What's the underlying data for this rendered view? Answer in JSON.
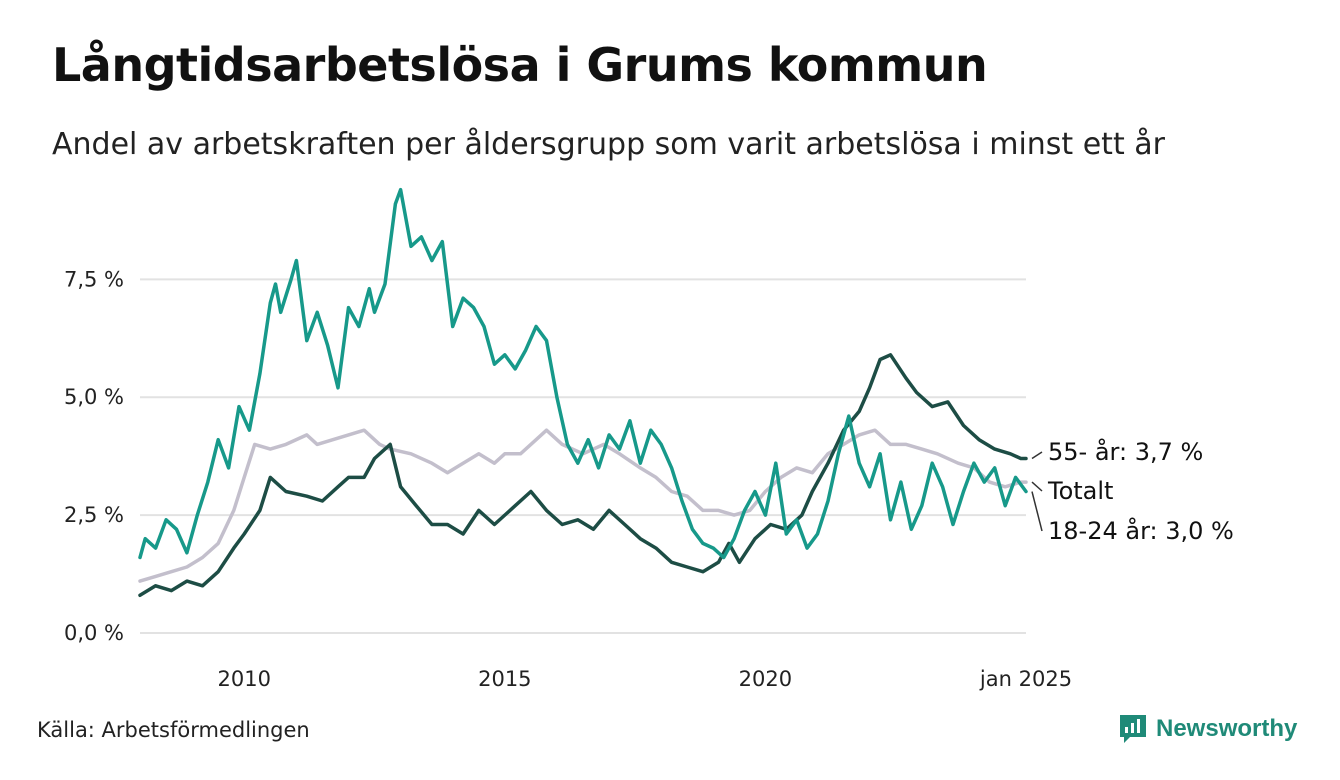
{
  "header": {
    "title": "Långtidsarbetslösa i Grums kommun",
    "subtitle": "Andel av arbetskraften per åldersgrupp som varit arbetslösa i minst ett år"
  },
  "footer": {
    "source": "Källa: Arbetsförmedlingen",
    "brand": "Newsworthy"
  },
  "colors": {
    "youth": "#17998a",
    "senior": "#1d4d45",
    "total": "#c3bfcc",
    "grid": "#e2e2e2",
    "brand": "#1f8a78"
  },
  "chart_data": {
    "type": "line",
    "title": "Långtidsarbetslösa i Grums kommun",
    "xlabel": "",
    "ylabel": "",
    "x_range": [
      2008.0,
      2025.0
    ],
    "ylim": [
      0,
      9.5
    ],
    "y_ticks": [
      0,
      2.5,
      5.0,
      7.5
    ],
    "y_tick_labels": [
      "0,0 %",
      "2,5 %",
      "5,0 %",
      "7,5 %"
    ],
    "x_ticks": [
      2010,
      2015,
      2020,
      2025
    ],
    "x_tick_labels": [
      "2010",
      "2015",
      "2020",
      "jan 2025"
    ],
    "grid": true,
    "series": [
      {
        "key": "total",
        "name": "Totalt",
        "end_label": "Totalt",
        "points": [
          [
            2008.0,
            1.1
          ],
          [
            2008.3,
            1.2
          ],
          [
            2008.6,
            1.3
          ],
          [
            2008.9,
            1.4
          ],
          [
            2009.2,
            1.6
          ],
          [
            2009.5,
            1.9
          ],
          [
            2009.8,
            2.6
          ],
          [
            2010.0,
            3.3
          ],
          [
            2010.2,
            4.0
          ],
          [
            2010.5,
            3.9
          ],
          [
            2010.8,
            4.0
          ],
          [
            2011.2,
            4.2
          ],
          [
            2011.4,
            4.0
          ],
          [
            2011.7,
            4.1
          ],
          [
            2012.0,
            4.2
          ],
          [
            2012.3,
            4.3
          ],
          [
            2012.6,
            4.0
          ],
          [
            2012.8,
            3.9
          ],
          [
            2013.2,
            3.8
          ],
          [
            2013.6,
            3.6
          ],
          [
            2013.9,
            3.4
          ],
          [
            2014.2,
            3.6
          ],
          [
            2014.5,
            3.8
          ],
          [
            2014.8,
            3.6
          ],
          [
            2015.0,
            3.8
          ],
          [
            2015.3,
            3.8
          ],
          [
            2015.6,
            4.1
          ],
          [
            2015.8,
            4.3
          ],
          [
            2016.1,
            4.0
          ],
          [
            2016.5,
            3.8
          ],
          [
            2016.9,
            4.0
          ],
          [
            2017.2,
            3.8
          ],
          [
            2017.6,
            3.5
          ],
          [
            2017.9,
            3.3
          ],
          [
            2018.2,
            3.0
          ],
          [
            2018.5,
            2.9
          ],
          [
            2018.8,
            2.6
          ],
          [
            2019.1,
            2.6
          ],
          [
            2019.4,
            2.5
          ],
          [
            2019.7,
            2.6
          ],
          [
            2020.0,
            3.0
          ],
          [
            2020.3,
            3.3
          ],
          [
            2020.6,
            3.5
          ],
          [
            2020.9,
            3.4
          ],
          [
            2021.2,
            3.8
          ],
          [
            2021.5,
            4.0
          ],
          [
            2021.8,
            4.2
          ],
          [
            2022.1,
            4.3
          ],
          [
            2022.4,
            4.0
          ],
          [
            2022.7,
            4.0
          ],
          [
            2023.0,
            3.9
          ],
          [
            2023.3,
            3.8
          ],
          [
            2023.7,
            3.6
          ],
          [
            2024.0,
            3.5
          ],
          [
            2024.3,
            3.2
          ],
          [
            2024.6,
            3.1
          ],
          [
            2024.9,
            3.2
          ],
          [
            2025.0,
            3.2
          ]
        ]
      },
      {
        "key": "senior",
        "name": "55- år",
        "end_label": "55- år: 3,7 %",
        "points": [
          [
            2008.0,
            0.8
          ],
          [
            2008.3,
            1.0
          ],
          [
            2008.6,
            0.9
          ],
          [
            2008.9,
            1.1
          ],
          [
            2009.2,
            1.0
          ],
          [
            2009.5,
            1.3
          ],
          [
            2009.8,
            1.8
          ],
          [
            2010.0,
            2.1
          ],
          [
            2010.3,
            2.6
          ],
          [
            2010.5,
            3.3
          ],
          [
            2010.8,
            3.0
          ],
          [
            2011.2,
            2.9
          ],
          [
            2011.5,
            2.8
          ],
          [
            2011.8,
            3.1
          ],
          [
            2012.0,
            3.3
          ],
          [
            2012.3,
            3.3
          ],
          [
            2012.5,
            3.7
          ],
          [
            2012.8,
            4.0
          ],
          [
            2013.0,
            3.1
          ],
          [
            2013.3,
            2.7
          ],
          [
            2013.6,
            2.3
          ],
          [
            2013.9,
            2.3
          ],
          [
            2014.2,
            2.1
          ],
          [
            2014.5,
            2.6
          ],
          [
            2014.8,
            2.3
          ],
          [
            2015.2,
            2.7
          ],
          [
            2015.5,
            3.0
          ],
          [
            2015.8,
            2.6
          ],
          [
            2016.1,
            2.3
          ],
          [
            2016.4,
            2.4
          ],
          [
            2016.7,
            2.2
          ],
          [
            2017.0,
            2.6
          ],
          [
            2017.3,
            2.3
          ],
          [
            2017.6,
            2.0
          ],
          [
            2017.9,
            1.8
          ],
          [
            2018.2,
            1.5
          ],
          [
            2018.5,
            1.4
          ],
          [
            2018.8,
            1.3
          ],
          [
            2019.1,
            1.5
          ],
          [
            2019.3,
            1.9
          ],
          [
            2019.5,
            1.5
          ],
          [
            2019.8,
            2.0
          ],
          [
            2020.1,
            2.3
          ],
          [
            2020.4,
            2.2
          ],
          [
            2020.7,
            2.5
          ],
          [
            2020.9,
            3.0
          ],
          [
            2021.2,
            3.6
          ],
          [
            2021.5,
            4.3
          ],
          [
            2021.8,
            4.7
          ],
          [
            2022.0,
            5.2
          ],
          [
            2022.2,
            5.8
          ],
          [
            2022.4,
            5.9
          ],
          [
            2022.7,
            5.4
          ],
          [
            2022.9,
            5.1
          ],
          [
            2023.2,
            4.8
          ],
          [
            2023.5,
            4.9
          ],
          [
            2023.8,
            4.4
          ],
          [
            2024.1,
            4.1
          ],
          [
            2024.4,
            3.9
          ],
          [
            2024.7,
            3.8
          ],
          [
            2024.9,
            3.7
          ],
          [
            2025.0,
            3.7
          ]
        ]
      },
      {
        "key": "youth",
        "name": "18-24 år",
        "end_label": "18-24 år: 3,0 %",
        "points": [
          [
            2008.0,
            1.6
          ],
          [
            2008.1,
            2.0
          ],
          [
            2008.3,
            1.8
          ],
          [
            2008.5,
            2.4
          ],
          [
            2008.7,
            2.2
          ],
          [
            2008.9,
            1.7
          ],
          [
            2009.1,
            2.5
          ],
          [
            2009.3,
            3.2
          ],
          [
            2009.5,
            4.1
          ],
          [
            2009.7,
            3.5
          ],
          [
            2009.9,
            4.8
          ],
          [
            2010.1,
            4.3
          ],
          [
            2010.3,
            5.5
          ],
          [
            2010.5,
            7.0
          ],
          [
            2010.6,
            7.4
          ],
          [
            2010.7,
            6.8
          ],
          [
            2010.9,
            7.5
          ],
          [
            2011.0,
            7.9
          ],
          [
            2011.2,
            6.2
          ],
          [
            2011.4,
            6.8
          ],
          [
            2011.6,
            6.1
          ],
          [
            2011.8,
            5.2
          ],
          [
            2012.0,
            6.9
          ],
          [
            2012.2,
            6.5
          ],
          [
            2012.4,
            7.3
          ],
          [
            2012.5,
            6.8
          ],
          [
            2012.7,
            7.4
          ],
          [
            2012.9,
            9.1
          ],
          [
            2013.0,
            9.4
          ],
          [
            2013.2,
            8.2
          ],
          [
            2013.4,
            8.4
          ],
          [
            2013.6,
            7.9
          ],
          [
            2013.8,
            8.3
          ],
          [
            2014.0,
            6.5
          ],
          [
            2014.2,
            7.1
          ],
          [
            2014.4,
            6.9
          ],
          [
            2014.6,
            6.5
          ],
          [
            2014.8,
            5.7
          ],
          [
            2015.0,
            5.9
          ],
          [
            2015.2,
            5.6
          ],
          [
            2015.4,
            6.0
          ],
          [
            2015.6,
            6.5
          ],
          [
            2015.8,
            6.2
          ],
          [
            2016.0,
            5.0
          ],
          [
            2016.2,
            4.0
          ],
          [
            2016.4,
            3.6
          ],
          [
            2016.6,
            4.1
          ],
          [
            2016.8,
            3.5
          ],
          [
            2017.0,
            4.2
          ],
          [
            2017.2,
            3.9
          ],
          [
            2017.4,
            4.5
          ],
          [
            2017.6,
            3.6
          ],
          [
            2017.8,
            4.3
          ],
          [
            2018.0,
            4.0
          ],
          [
            2018.2,
            3.5
          ],
          [
            2018.4,
            2.8
          ],
          [
            2018.6,
            2.2
          ],
          [
            2018.8,
            1.9
          ],
          [
            2019.0,
            1.8
          ],
          [
            2019.2,
            1.6
          ],
          [
            2019.4,
            2.0
          ],
          [
            2019.6,
            2.6
          ],
          [
            2019.8,
            3.0
          ],
          [
            2020.0,
            2.5
          ],
          [
            2020.2,
            3.6
          ],
          [
            2020.4,
            2.1
          ],
          [
            2020.6,
            2.4
          ],
          [
            2020.8,
            1.8
          ],
          [
            2021.0,
            2.1
          ],
          [
            2021.2,
            2.8
          ],
          [
            2021.4,
            3.8
          ],
          [
            2021.6,
            4.6
          ],
          [
            2021.8,
            3.6
          ],
          [
            2022.0,
            3.1
          ],
          [
            2022.2,
            3.8
          ],
          [
            2022.4,
            2.4
          ],
          [
            2022.6,
            3.2
          ],
          [
            2022.8,
            2.2
          ],
          [
            2023.0,
            2.7
          ],
          [
            2023.2,
            3.6
          ],
          [
            2023.4,
            3.1
          ],
          [
            2023.6,
            2.3
          ],
          [
            2023.8,
            3.0
          ],
          [
            2024.0,
            3.6
          ],
          [
            2024.2,
            3.2
          ],
          [
            2024.4,
            3.5
          ],
          [
            2024.6,
            2.7
          ],
          [
            2024.8,
            3.3
          ],
          [
            2025.0,
            3.0
          ]
        ]
      }
    ]
  }
}
